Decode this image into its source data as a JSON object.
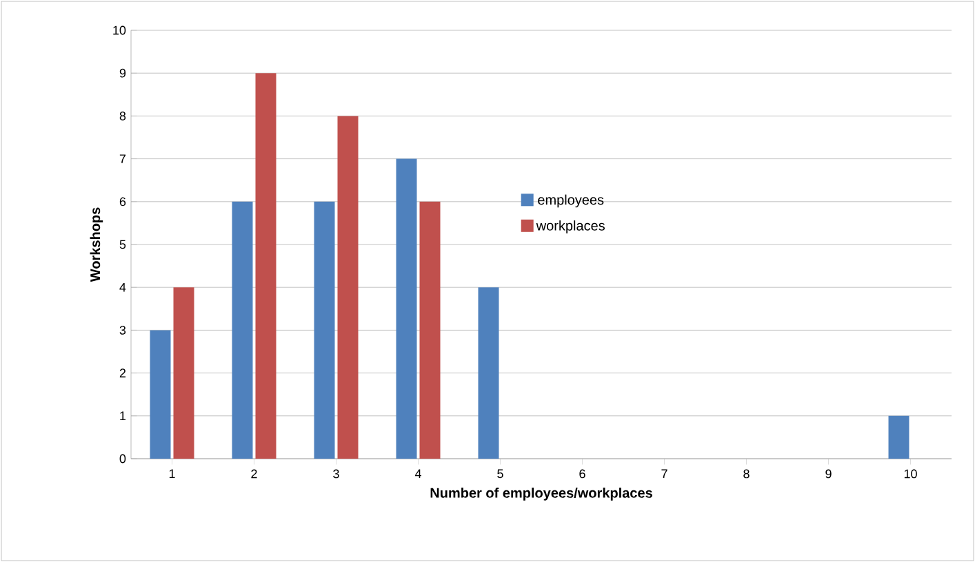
{
  "chart_data": {
    "type": "bar",
    "xlabel": "Number of employees/workplaces",
    "ylabel": "Workshops",
    "categories": [
      "1",
      "2",
      "3",
      "4",
      "5",
      "6",
      "7",
      "8",
      "9",
      "10"
    ],
    "series": [
      {
        "name": "employees",
        "color": "#4f81bd",
        "values": [
          3,
          6,
          6,
          7,
          4,
          0,
          0,
          0,
          0,
          1
        ]
      },
      {
        "name": "workplaces",
        "color": "#c0504d",
        "values": [
          4,
          9,
          8,
          6,
          0,
          0,
          0,
          0,
          0,
          0
        ]
      }
    ],
    "ylim": [
      0,
      10
    ],
    "yticks": [
      0,
      1,
      2,
      3,
      4,
      5,
      6,
      7,
      8,
      9,
      10
    ],
    "grid": "y",
    "legend": "center"
  }
}
